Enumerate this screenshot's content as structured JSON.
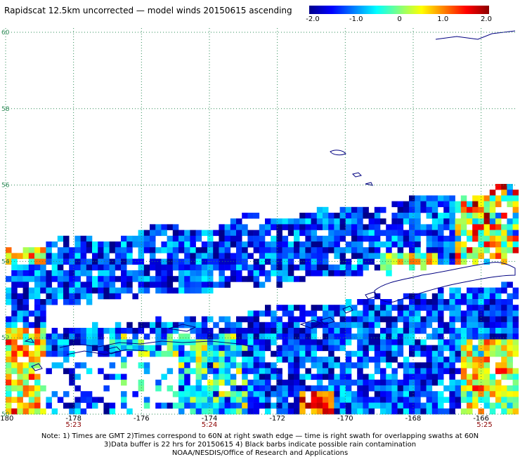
{
  "title": "Rapidscat 12.5km uncorrected — model winds 20150615 ascending",
  "colorbar": {
    "labels": [
      "-2.0",
      "-1.0",
      "0",
      "1.0",
      "2.0"
    ],
    "range": [
      -2.0,
      2.0
    ],
    "colors": [
      "#00008b",
      "#0000ff",
      "#0080ff",
      "#00ffff",
      "#80ff80",
      "#ffff00",
      "#ff8000",
      "#ff0000",
      "#8b0000"
    ]
  },
  "map": {
    "lon_range": [
      -180,
      -165
    ],
    "lat_range": [
      50,
      60
    ],
    "lon_ticks": [
      "-180",
      "-178",
      "-176",
      "-174",
      "-172",
      "-170",
      "-168",
      "-166"
    ],
    "lat_ticks": [
      "60",
      "58",
      "56",
      "54",
      "52",
      "50"
    ],
    "time_labels": [
      {
        "lon": -178,
        "text": "5:23"
      },
      {
        "lon": -174,
        "text": "5:24"
      },
      {
        "lon": -165.9,
        "text": "5:25"
      }
    ],
    "gridline_color": "#2e8b57",
    "time_label_color": "#8b0000",
    "coastline_color": "#000080"
  },
  "notes": [
    "Note: 1) Times are GMT 2)Times correspond to 60N at right swath edge — time is right swath for overlapping swaths at 60N",
    "3)Data buffer is 22 hrs for 20150615 4) Black barbs indicate possible rain contamination",
    "NOAA/NESDIS/Office of Research and Applications"
  ]
}
